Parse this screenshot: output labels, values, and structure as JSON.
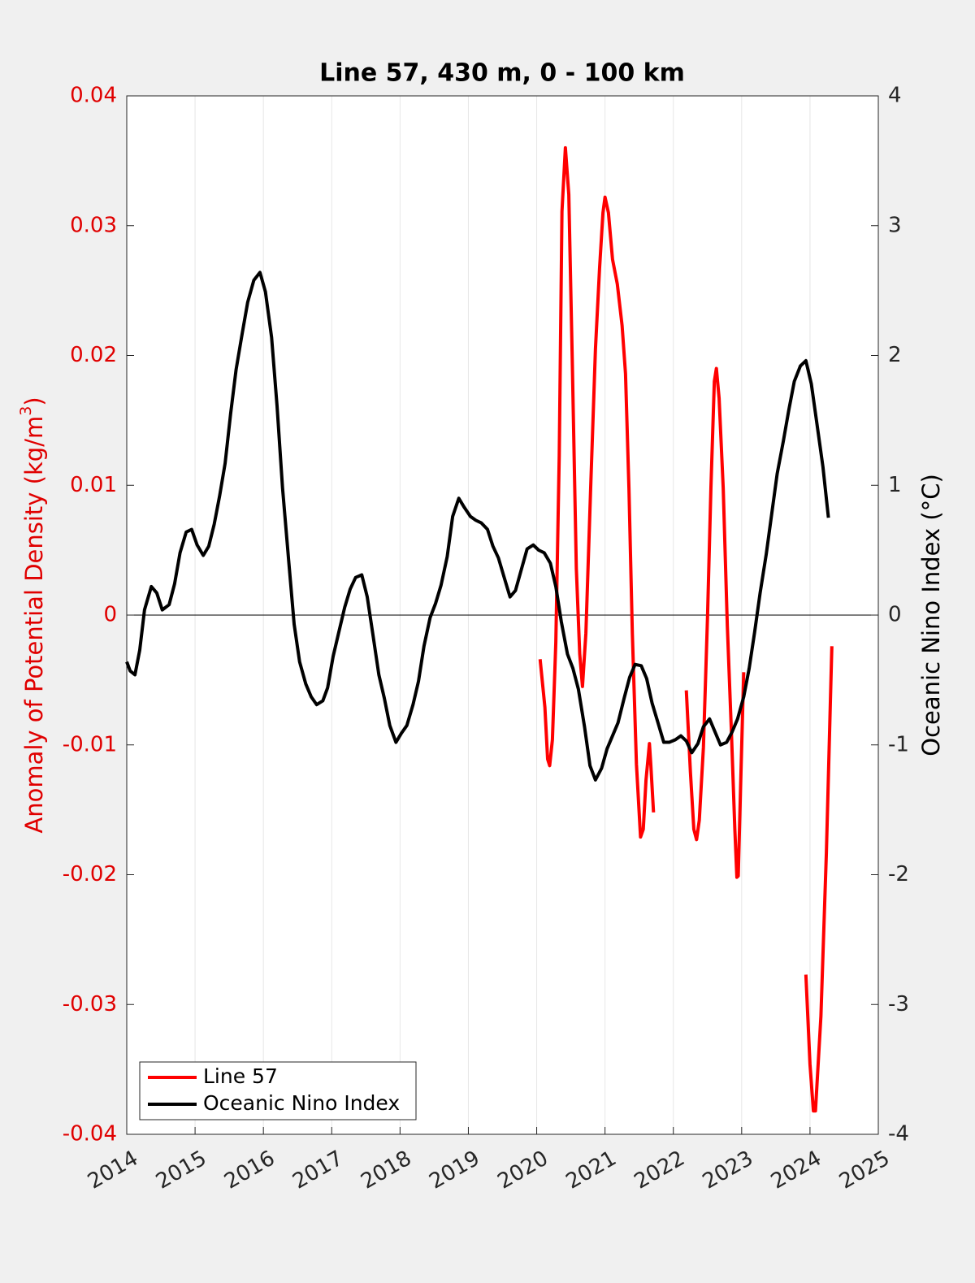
{
  "chart_data": {
    "type": "line",
    "title": "Line 57, 430 m, 0 - 100 km",
    "ylabel": [
      "Anomaly of Potential Density (kg/m",
      "3",
      ")"
    ],
    "y2label": "Oceanic Nino Index (°C)",
    "xlim": [
      2014,
      2025
    ],
    "xticks": [
      2014,
      2015,
      2016,
      2017,
      2018,
      2019,
      2020,
      2021,
      2022,
      2023,
      2024,
      2025
    ],
    "ylim": [
      -0.04,
      0.04
    ],
    "yticks": [
      -0.04,
      -0.03,
      -0.02,
      -0.01,
      0,
      0.01,
      0.02,
      0.03,
      0.04
    ],
    "y2lim": [
      -4,
      4
    ],
    "y2ticks": [
      -4,
      -3,
      -2,
      -1,
      0,
      1,
      2,
      3,
      4
    ],
    "xgrid": true,
    "legend": "lower left",
    "left_axis_color": "#e00000",
    "series": [
      {
        "name": "Line 57",
        "color": "#ff0000",
        "axis": "y",
        "x": [
          2020.05,
          2020.12,
          2020.16,
          2020.19,
          2020.23,
          2020.28,
          2020.33,
          2020.37,
          2020.42,
          2020.47,
          2020.52,
          2020.58,
          2020.63,
          2020.67,
          2020.72,
          2020.79,
          2020.86,
          2020.92,
          2020.97,
          2021.0,
          2021.05,
          2021.11,
          2021.18,
          2021.25,
          2021.3,
          2021.35,
          2021.4,
          2021.46,
          2021.52,
          2021.56,
          2021.6,
          2021.65,
          2021.67,
          2021.71,
          2021.95,
          2022.19,
          2022.25,
          2022.3,
          2022.34,
          2022.38,
          2022.44,
          2022.5,
          2022.55,
          2022.6,
          2022.63,
          2022.67,
          2022.73,
          2022.79,
          2022.85,
          2022.9,
          2022.93,
          2022.95,
          2022.99,
          2023.03,
          2023.5,
          2023.94,
          2024.0,
          2024.05,
          2024.08,
          2024.16,
          2024.24,
          2024.32
        ],
        "values": [
          -0.0034,
          -0.0071,
          -0.0111,
          -0.0116,
          -0.0096,
          -0.0021,
          0.0123,
          0.0311,
          0.036,
          0.0324,
          0.0198,
          0.0036,
          -0.003,
          -0.0055,
          -0.0014,
          0.0098,
          0.0205,
          0.0267,
          0.031,
          0.0322,
          0.031,
          0.0274,
          0.0255,
          0.0223,
          0.0186,
          0.0098,
          -0.0014,
          -0.0115,
          -0.0171,
          -0.0165,
          -0.0127,
          -0.0099,
          -0.0115,
          -0.0152,
          null,
          -0.0058,
          -0.0121,
          -0.0165,
          -0.0173,
          -0.0158,
          -0.0102,
          -0.0002,
          0.0098,
          0.018,
          0.019,
          0.0167,
          0.0098,
          -0.0008,
          -0.009,
          -0.0165,
          -0.0202,
          -0.0201,
          -0.0121,
          -0.0044,
          null,
          -0.0277,
          -0.0346,
          -0.0382,
          -0.0382,
          -0.0309,
          -0.0183,
          -0.0024
        ]
      },
      {
        "name": "Oceanic Nino Index",
        "color": "#000000",
        "axis": "y2",
        "x": [
          2014.0,
          2014.05,
          2014.12,
          2014.19,
          2014.26,
          2014.36,
          2014.44,
          2014.52,
          2014.62,
          2014.7,
          2014.78,
          2014.87,
          2014.95,
          2015.03,
          2015.12,
          2015.2,
          2015.28,
          2015.36,
          2015.44,
          2015.52,
          2015.6,
          2015.69,
          2015.77,
          2015.86,
          2015.95,
          2016.03,
          2016.12,
          2016.2,
          2016.28,
          2016.37,
          2016.45,
          2016.53,
          2016.62,
          2016.7,
          2016.78,
          2016.87,
          2016.94,
          2017.02,
          2017.1,
          2017.19,
          2017.27,
          2017.35,
          2017.44,
          2017.52,
          2017.6,
          2017.69,
          2017.77,
          2017.85,
          2017.94,
          2018.02,
          2018.1,
          2018.19,
          2018.27,
          2018.35,
          2018.44,
          2018.52,
          2018.6,
          2018.69,
          2018.77,
          2018.86,
          2018.94,
          2019.03,
          2019.11,
          2019.19,
          2019.28,
          2019.36,
          2019.44,
          2019.53,
          2019.61,
          2019.69,
          2019.78,
          2019.86,
          2019.95,
          2020.03,
          2020.11,
          2020.2,
          2020.28,
          2020.36,
          2020.45,
          2020.53,
          2020.61,
          2020.7,
          2020.78,
          2020.86,
          2020.95,
          2021.03,
          2021.11,
          2021.19,
          2021.28,
          2021.36,
          2021.44,
          2021.53,
          2021.61,
          2021.69,
          2021.77,
          2021.86,
          2021.94,
          2022.03,
          2022.11,
          2022.19,
          2022.27,
          2022.36,
          2022.44,
          2022.53,
          2022.61,
          2022.69,
          2022.78,
          2022.86,
          2022.94,
          2023.03,
          2023.11,
          2023.19,
          2023.27,
          2023.36,
          2023.44,
          2023.52,
          2023.61,
          2023.69,
          2023.77,
          2023.86,
          2023.94,
          2024.02,
          2024.1,
          2024.19,
          2024.27
        ],
        "values": [
          -0.36,
          -0.43,
          -0.46,
          -0.27,
          0.04,
          0.22,
          0.17,
          0.04,
          0.08,
          0.24,
          0.48,
          0.64,
          0.66,
          0.54,
          0.46,
          0.53,
          0.7,
          0.92,
          1.17,
          1.55,
          1.89,
          2.17,
          2.41,
          2.58,
          2.64,
          2.49,
          2.14,
          1.61,
          0.98,
          0.42,
          -0.07,
          -0.36,
          -0.53,
          -0.63,
          -0.69,
          -0.66,
          -0.56,
          -0.32,
          -0.14,
          0.06,
          0.2,
          0.29,
          0.31,
          0.14,
          -0.14,
          -0.46,
          -0.64,
          -0.85,
          -0.98,
          -0.91,
          -0.85,
          -0.69,
          -0.51,
          -0.24,
          -0.02,
          0.09,
          0.23,
          0.45,
          0.76,
          0.9,
          0.83,
          0.76,
          0.73,
          0.71,
          0.66,
          0.53,
          0.44,
          0.28,
          0.14,
          0.19,
          0.36,
          0.51,
          0.54,
          0.5,
          0.48,
          0.4,
          0.22,
          -0.05,
          -0.3,
          -0.41,
          -0.57,
          -0.86,
          -1.16,
          -1.27,
          -1.18,
          -1.03,
          -0.93,
          -0.83,
          -0.64,
          -0.48,
          -0.38,
          -0.39,
          -0.49,
          -0.68,
          -0.82,
          -0.98,
          -0.98,
          -0.96,
          -0.93,
          -0.97,
          -1.06,
          -0.99,
          -0.86,
          -0.8,
          -0.9,
          -1.0,
          -0.98,
          -0.9,
          -0.8,
          -0.63,
          -0.41,
          -0.13,
          0.17,
          0.47,
          0.78,
          1.09,
          1.34,
          1.58,
          1.8,
          1.92,
          1.96,
          1.78,
          1.48,
          1.14,
          0.75
        ]
      }
    ]
  }
}
